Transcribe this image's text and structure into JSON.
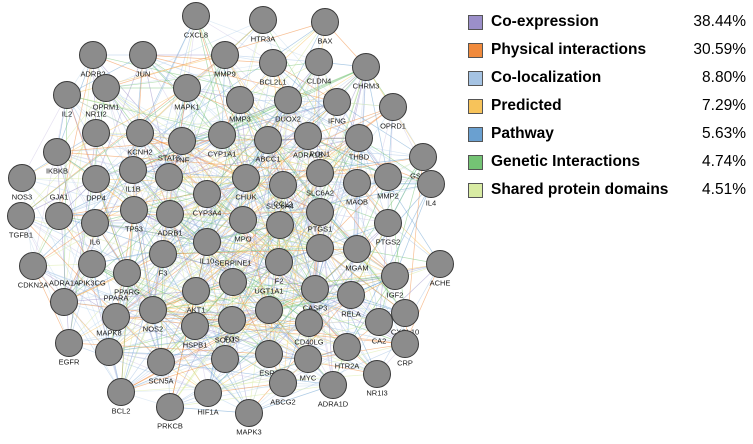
{
  "legend": [
    {
      "label": "Co-expression",
      "value": "38.44%",
      "color": "#9b8fc9"
    },
    {
      "label": "Physical interactions",
      "value": "30.59%",
      "color": "#f08a3c"
    },
    {
      "label": "Co-localization",
      "value": "8.80%",
      "color": "#a5c3e3"
    },
    {
      "label": "Predicted",
      "value": "7.29%",
      "color": "#f7c35a"
    },
    {
      "label": "Pathway",
      "value": "5.63%",
      "color": "#6aa0d0"
    },
    {
      "label": "Genetic Interactions",
      "value": "4.74%",
      "color": "#74c374"
    },
    {
      "label": "Shared protein domains",
      "value": "4.51%",
      "color": "#d8eba3"
    }
  ],
  "network": {
    "node_fill": "#8c8c8c",
    "node_stroke": "#3a3a3a",
    "nodes": [
      "CXCL8",
      "HTR3A",
      "BAX",
      "ADRB2",
      "JUN",
      "MMP9",
      "BCL2L1",
      "CLDN4",
      "CHRM3",
      "IL2",
      "OPRM1",
      "MAPK1",
      "MMP3",
      "DUOX2",
      "IFNG",
      "OPRD1",
      "NR1I2",
      "KCNH2",
      "TNF",
      "CYP1A1",
      "ABCC1",
      "ADRA1B",
      "THBD",
      "GSTM1",
      "IKBKB",
      "IL1B",
      "STAT3",
      "CHUK",
      "PON1",
      "MMP2",
      "NOS3",
      "DPP4",
      "CYP3A4",
      "CCL2",
      "MAOB",
      "GJA1",
      "TP53",
      "ADRB1",
      "SLC6A2",
      "IL4",
      "TGFB1",
      "IL6",
      "MPO",
      "SLC6A4",
      "PTGS2",
      "IL10",
      "PTGS1",
      "MGAM",
      "CDKN2A",
      "PIK3CG",
      "F3",
      "F2",
      "ACHE",
      "PPARG",
      "SERPINE1",
      "IGF2",
      "ADRA1A",
      "AKT1",
      "CASP3",
      "RELA",
      "PPARA",
      "NOS2",
      "UGT1A1",
      "CXCL10",
      "HSPB1",
      "FOS",
      "CD40LG",
      "CA2",
      "EGFR",
      "SCN5A",
      "ESR1",
      "HTR2A",
      "CRP",
      "MAPK8",
      "SOD1",
      "MYC",
      "NR1I3",
      "BCL2",
      "HIF1A",
      "ABCG2",
      "ADRA1D",
      "PRKCB",
      "MAPK3"
    ]
  }
}
